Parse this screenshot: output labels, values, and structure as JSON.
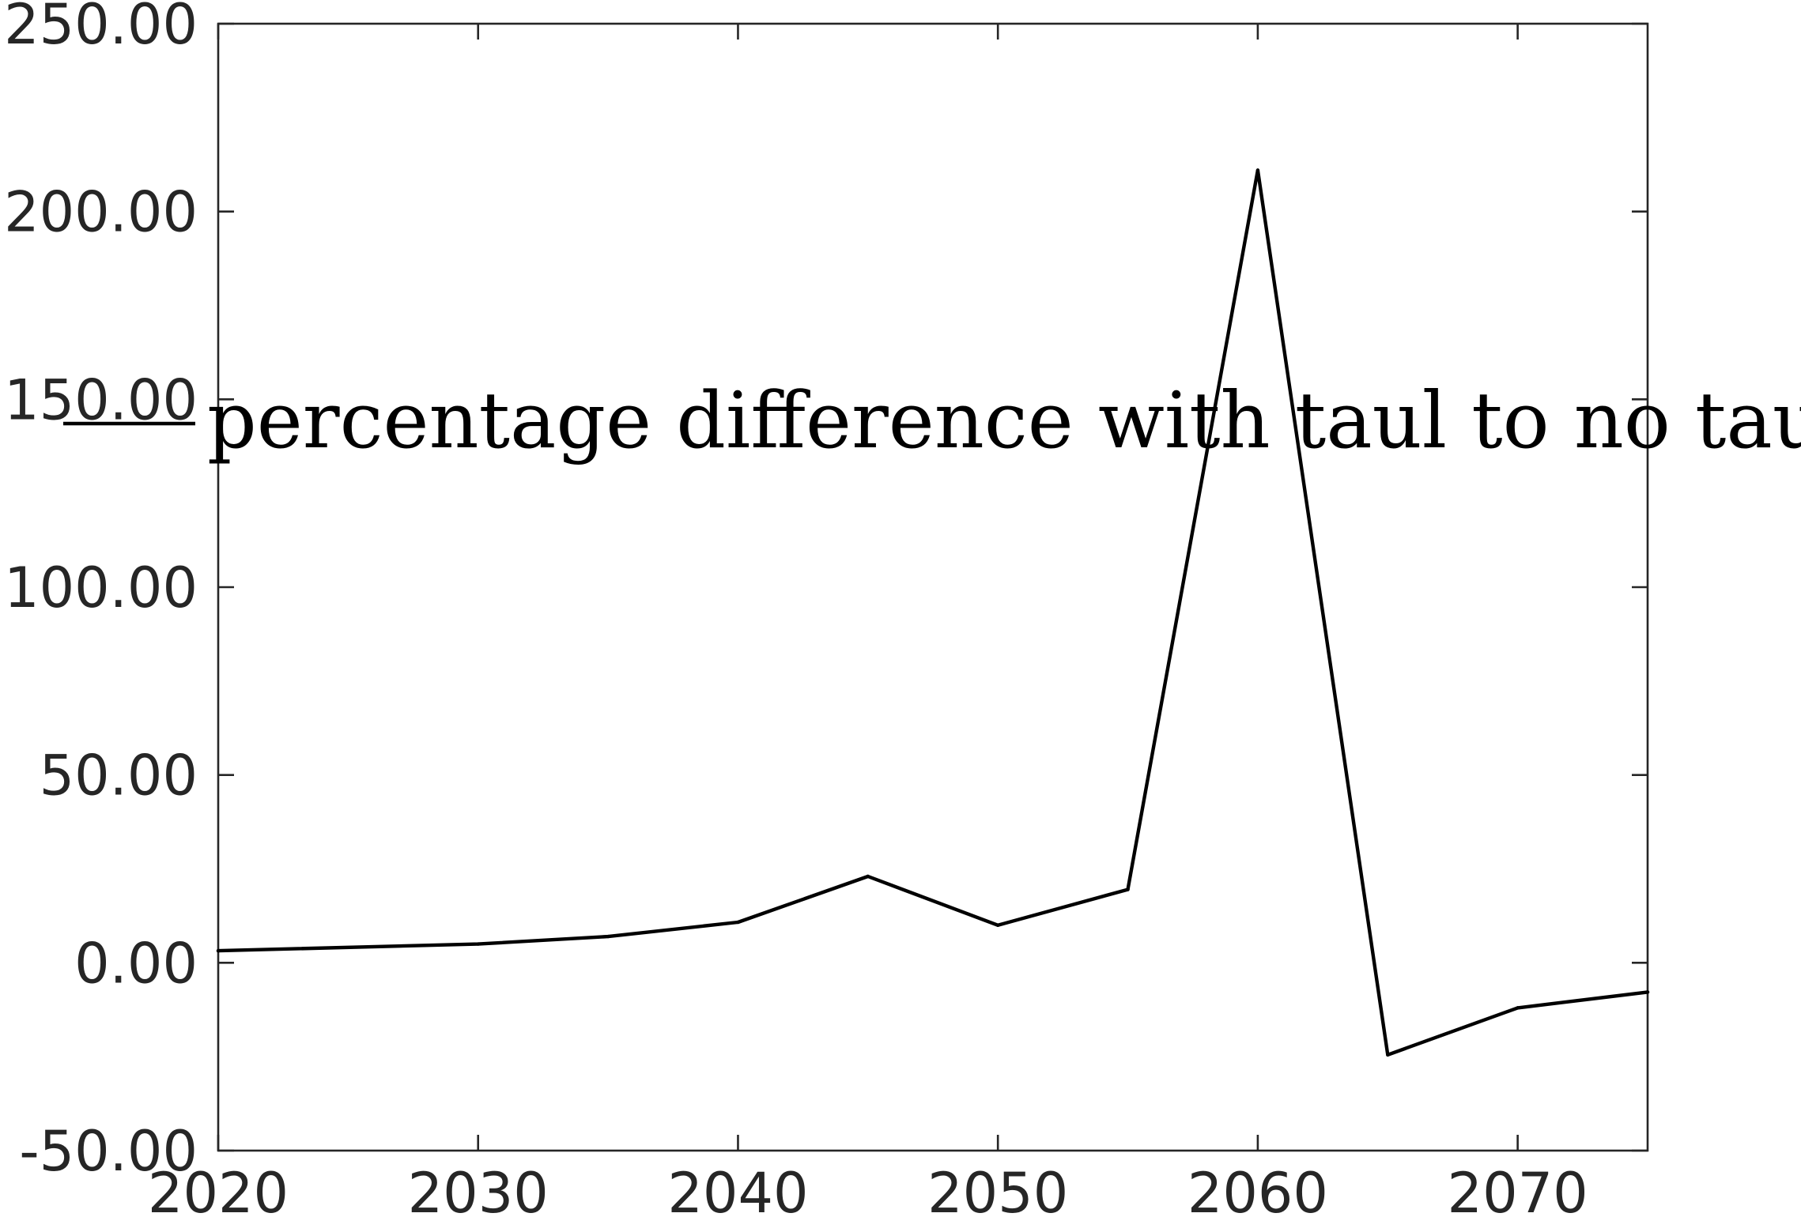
{
  "chart_data": {
    "type": "line",
    "title": "",
    "xlabel": "",
    "ylabel": "",
    "xlim": [
      2020,
      2075
    ],
    "ylim": [
      -50,
      250
    ],
    "x_ticks": [
      2020,
      2030,
      2040,
      2050,
      2060,
      2070
    ],
    "x_tick_labels": [
      "2020",
      "2030",
      "2040",
      "2050",
      "2060",
      "2070"
    ],
    "y_ticks": [
      -50,
      0,
      50,
      100,
      150,
      200,
      250
    ],
    "y_tick_labels": [
      "-50.00",
      "0.00",
      "50.00",
      "100.00",
      "150.00",
      "200.00",
      "250.00"
    ],
    "grid": false,
    "legend": {
      "placement": "center",
      "entries": [
        "percentage difference with taul to no taul"
      ]
    },
    "series": [
      {
        "name": "percentage difference with taul to no taul",
        "color": "#000000",
        "x": [
          2020,
          2030,
          2035,
          2040,
          2045,
          2050,
          2055,
          2060,
          2065,
          2070,
          2075
        ],
        "y": [
          3.2,
          5.0,
          7.0,
          10.8,
          23.0,
          10.0,
          19.5,
          211.0,
          -24.5,
          -12.0,
          -7.8
        ]
      }
    ]
  }
}
